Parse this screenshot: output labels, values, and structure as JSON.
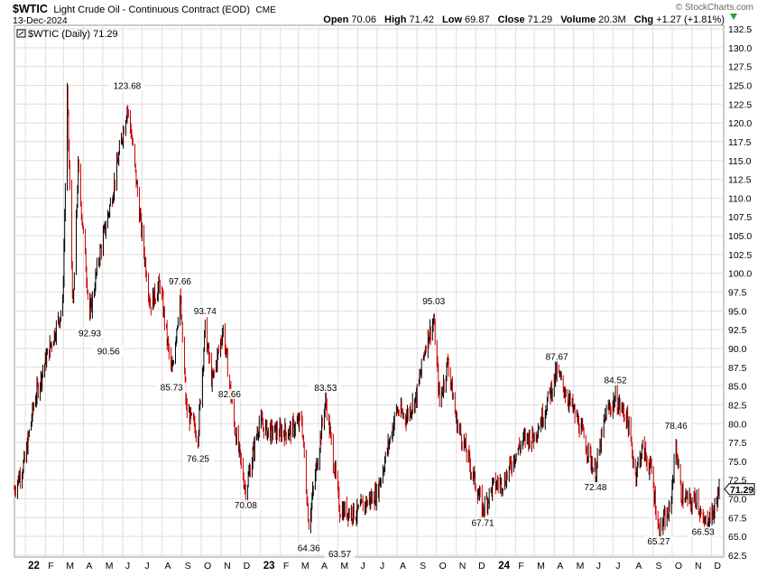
{
  "header": {
    "symbol": "$WTIC",
    "name": "Light Crude Oil - Continuous Contract (EOD)",
    "exchange": "CME",
    "date": "13-Dec-2024",
    "watermark": "© StockCharts.com",
    "quote": {
      "open_label": "Open",
      "open": "70.06",
      "high_label": "High",
      "high": "71.42",
      "low_label": "Low",
      "low": "69.87",
      "close_label": "Close",
      "close": "71.29",
      "volume_label": "Volume",
      "volume": "20.3M",
      "chg_label": "Chg",
      "chg": "+1.27 (+1.81%)"
    }
  },
  "legend": {
    "label": "$WTIC (Daily) 71.29"
  },
  "last_price_tag": "71.29",
  "colors": {
    "up": "#000000",
    "down": "#cc0000",
    "grid": "#dedede",
    "frame": "#999999",
    "tag_bg": "#ffffff"
  },
  "chart_data": {
    "type": "line",
    "title": "$WTIC Light Crude Oil - Continuous Contract (EOD)",
    "series": [
      {
        "name": "$WTIC (Daily)",
        "x": [
          "2021-12-15",
          "2021-12-31",
          "2022-01-15",
          "2022-01-31",
          "2022-02-15",
          "2022-02-28",
          "2022-03-07",
          "2022-03-16",
          "2022-03-24",
          "2022-04-11",
          "2022-04-25",
          "2022-05-15",
          "2022-06-08",
          "2022-06-14",
          "2022-06-30",
          "2022-07-14",
          "2022-07-29",
          "2022-08-16",
          "2022-08-29",
          "2022-09-08",
          "2022-09-26",
          "2022-10-07",
          "2022-10-18",
          "2022-11-04",
          "2022-11-21",
          "2022-12-09",
          "2022-12-30",
          "2023-01-12",
          "2023-01-31",
          "2023-02-15",
          "2023-03-06",
          "2023-03-17",
          "2023-04-12",
          "2023-05-04",
          "2023-05-31",
          "2023-06-13",
          "2023-06-30",
          "2023-07-14",
          "2023-07-31",
          "2023-08-15",
          "2023-08-31",
          "2023-09-15",
          "2023-09-27",
          "2023-10-06",
          "2023-10-19",
          "2023-11-01",
          "2023-11-15",
          "2023-12-12",
          "2023-12-28",
          "2024-01-15",
          "2024-01-31",
          "2024-02-15",
          "2024-02-29",
          "2024-03-14",
          "2024-04-05",
          "2024-04-30",
          "2024-05-15",
          "2024-06-04",
          "2024-06-20",
          "2024-07-05",
          "2024-07-23",
          "2024-08-05",
          "2024-08-16",
          "2024-08-30",
          "2024-09-10",
          "2024-09-27",
          "2024-10-07",
          "2024-10-15",
          "2024-10-31",
          "2024-11-08",
          "2024-11-18",
          "2024-12-05",
          "2024-12-13"
        ],
        "values": [
          71.3,
          75.0,
          83.0,
          88.0,
          92.0,
          95.7,
          123.7,
          95.0,
          114.0,
          94.3,
          102.0,
          110.0,
          122.1,
          118.9,
          105.8,
          95.8,
          98.6,
          86.5,
          97.0,
          81.9,
          78.5,
          92.6,
          85.5,
          92.6,
          80.0,
          71.0,
          80.3,
          79.0,
          78.9,
          79.0,
          80.5,
          66.7,
          83.3,
          68.6,
          68.1,
          69.4,
          70.6,
          75.4,
          81.8,
          80.9,
          83.6,
          90.8,
          93.7,
          82.8,
          88.3,
          80.4,
          76.7,
          68.6,
          71.7,
          72.4,
          75.9,
          78.0,
          78.3,
          81.0,
          86.9,
          81.9,
          78.6,
          73.3,
          81.3,
          83.2,
          80.8,
          73.3,
          76.7,
          73.6,
          65.8,
          68.2,
          77.1,
          70.6,
          69.3,
          70.4,
          66.5,
          68.3,
          71.29
        ]
      }
    ],
    "y_axis": {
      "min": 62.5,
      "max": 132.5,
      "step": 2.5,
      "side": "right",
      "ticks": [
        "132.5",
        "130.0",
        "127.5",
        "125.0",
        "122.5",
        "120.0",
        "117.5",
        "115.0",
        "112.5",
        "110.0",
        "107.5",
        "105.0",
        "102.5",
        "100.0",
        "97.5",
        "95.0",
        "92.5",
        "90.0",
        "87.5",
        "85.0",
        "82.5",
        "80.0",
        "77.5",
        "75.0",
        "72.5",
        "70.0",
        "67.5",
        "65.0",
        "62.5"
      ]
    },
    "x_axis": {
      "range": [
        "2021-12-15",
        "2024-12-20"
      ],
      "ticks": [
        {
          "label": "22",
          "date": "2022-01-01",
          "bold": true
        },
        {
          "label": "F",
          "date": "2022-02-01"
        },
        {
          "label": "M",
          "date": "2022-03-01"
        },
        {
          "label": "A",
          "date": "2022-04-01"
        },
        {
          "label": "M",
          "date": "2022-05-01"
        },
        {
          "label": "J",
          "date": "2022-06-01"
        },
        {
          "label": "J",
          "date": "2022-07-01"
        },
        {
          "label": "A",
          "date": "2022-08-01"
        },
        {
          "label": "S",
          "date": "2022-09-01"
        },
        {
          "label": "O",
          "date": "2022-10-01"
        },
        {
          "label": "N",
          "date": "2022-11-01"
        },
        {
          "label": "D",
          "date": "2022-12-01"
        },
        {
          "label": "23",
          "date": "2023-01-01",
          "bold": true
        },
        {
          "label": "F",
          "date": "2023-02-01"
        },
        {
          "label": "M",
          "date": "2023-03-01"
        },
        {
          "label": "A",
          "date": "2023-04-01"
        },
        {
          "label": "M",
          "date": "2023-05-01"
        },
        {
          "label": "J",
          "date": "2023-06-01"
        },
        {
          "label": "J",
          "date": "2023-07-01"
        },
        {
          "label": "A",
          "date": "2023-08-01"
        },
        {
          "label": "S",
          "date": "2023-09-01"
        },
        {
          "label": "O",
          "date": "2023-10-01"
        },
        {
          "label": "N",
          "date": "2023-11-01"
        },
        {
          "label": "D",
          "date": "2023-12-01"
        },
        {
          "label": "24",
          "date": "2024-01-01",
          "bold": true
        },
        {
          "label": "F",
          "date": "2024-02-01"
        },
        {
          "label": "M",
          "date": "2024-03-01"
        },
        {
          "label": "A",
          "date": "2024-04-01"
        },
        {
          "label": "M",
          "date": "2024-05-01"
        },
        {
          "label": "J",
          "date": "2024-06-01"
        },
        {
          "label": "J",
          "date": "2024-07-01"
        },
        {
          "label": "A",
          "date": "2024-08-01"
        },
        {
          "label": "S",
          "date": "2024-09-01"
        },
        {
          "label": "O",
          "date": "2024-10-01"
        },
        {
          "label": "N",
          "date": "2024-11-01"
        },
        {
          "label": "D",
          "date": "2024-12-01"
        }
      ]
    },
    "grid": true,
    "annotations": [
      {
        "text": "123.68",
        "date": "2022-06-08",
        "value": 123.68,
        "pos": "above"
      },
      {
        "text": "92.93",
        "date": "2022-04-11",
        "value": 92.93,
        "pos": "below"
      },
      {
        "text": "90.56",
        "date": "2022-05-10",
        "value": 90.56,
        "pos": "below"
      },
      {
        "text": "97.66",
        "date": "2022-08-29",
        "value": 97.66,
        "pos": "above"
      },
      {
        "text": "85.73",
        "date": "2022-08-16",
        "value": 85.73,
        "pos": "below"
      },
      {
        "text": "93.74",
        "date": "2022-10-07",
        "value": 93.74,
        "pos": "above"
      },
      {
        "text": "76.25",
        "date": "2022-09-26",
        "value": 76.25,
        "pos": "below"
      },
      {
        "text": "82.66",
        "date": "2022-11-14",
        "value": 82.66,
        "pos": "above"
      },
      {
        "text": "70.08",
        "date": "2022-12-09",
        "value": 70.08,
        "pos": "below"
      },
      {
        "text": "83.53",
        "date": "2023-04-12",
        "value": 83.53,
        "pos": "above"
      },
      {
        "text": "64.36",
        "date": "2023-03-17",
        "value": 64.36,
        "pos": "below"
      },
      {
        "text": "63.57",
        "date": "2023-05-04",
        "value": 63.57,
        "pos": "below"
      },
      {
        "text": "95.03",
        "date": "2023-09-27",
        "value": 95.03,
        "pos": "above"
      },
      {
        "text": "67.71",
        "date": "2023-12-12",
        "value": 67.71,
        "pos": "below"
      },
      {
        "text": "87.67",
        "date": "2024-04-05",
        "value": 87.67,
        "pos": "above"
      },
      {
        "text": "84.52",
        "date": "2024-07-05",
        "value": 84.52,
        "pos": "above"
      },
      {
        "text": "72.48",
        "date": "2024-06-04",
        "value": 72.48,
        "pos": "below"
      },
      {
        "text": "78.46",
        "date": "2024-10-07",
        "value": 78.46,
        "pos": "above"
      },
      {
        "text": "65.27",
        "date": "2024-09-10",
        "value": 65.27,
        "pos": "below"
      },
      {
        "text": "66.53",
        "date": "2024-11-18",
        "value": 66.53,
        "pos": "below"
      }
    ]
  }
}
